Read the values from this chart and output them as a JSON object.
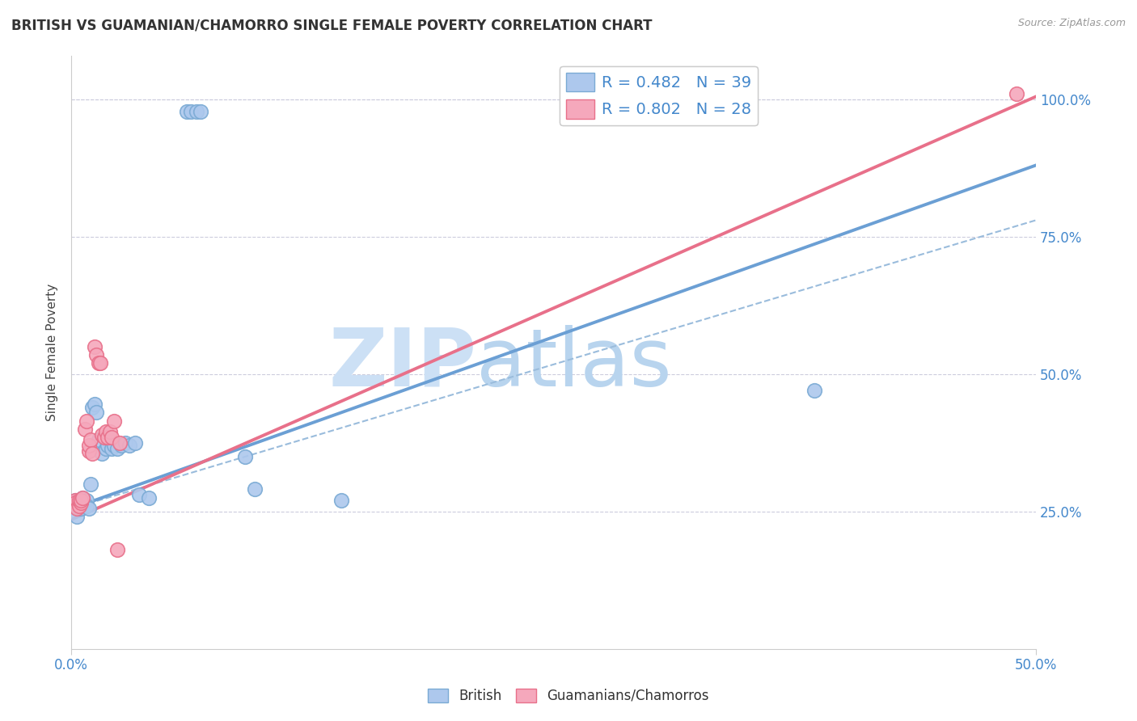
{
  "title": "BRITISH VS GUAMANIAN/CHAMORRO SINGLE FEMALE POVERTY CORRELATION CHART",
  "source": "Source: ZipAtlas.com",
  "ylabel": "Single Female Poverty",
  "legend1_text": "R = 0.482   N = 39",
  "legend2_text": "R = 0.802   N = 28",
  "british_color": "#adc8ed",
  "chamorro_color": "#f5a8bc",
  "british_edge_color": "#7aaad4",
  "chamorro_edge_color": "#e8708a",
  "british_line_color": "#6b9fd4",
  "chamorro_line_color": "#e8708a",
  "dashed_line_color": "#9abcdc",
  "xaxis_range": [
    0.0,
    0.5
  ],
  "yaxis_range": [
    0.0,
    1.08
  ],
  "x_ticks": [
    0.0,
    0.5
  ],
  "x_tick_labels": [
    "0.0%",
    "50.0%"
  ],
  "y_ticks": [
    0.25,
    0.5,
    0.75,
    1.0
  ],
  "y_tick_labels": [
    "25.0%",
    "50.0%",
    "75.0%",
    "100.0%"
  ],
  "british_scatter": [
    [
      0.002,
      0.27
    ],
    [
      0.002,
      0.265
    ],
    [
      0.003,
      0.24
    ],
    [
      0.004,
      0.255
    ],
    [
      0.004,
      0.26
    ],
    [
      0.005,
      0.265
    ],
    [
      0.005,
      0.255
    ],
    [
      0.006,
      0.27
    ],
    [
      0.006,
      0.275
    ],
    [
      0.007,
      0.265
    ],
    [
      0.008,
      0.27
    ],
    [
      0.008,
      0.26
    ],
    [
      0.009,
      0.255
    ],
    [
      0.01,
      0.3
    ],
    [
      0.011,
      0.44
    ],
    [
      0.012,
      0.445
    ],
    [
      0.013,
      0.43
    ],
    [
      0.014,
      0.38
    ],
    [
      0.016,
      0.355
    ],
    [
      0.018,
      0.365
    ],
    [
      0.019,
      0.37
    ],
    [
      0.02,
      0.38
    ],
    [
      0.021,
      0.365
    ],
    [
      0.022,
      0.37
    ],
    [
      0.024,
      0.365
    ],
    [
      0.026,
      0.37
    ],
    [
      0.028,
      0.375
    ],
    [
      0.03,
      0.37
    ],
    [
      0.033,
      0.375
    ],
    [
      0.035,
      0.28
    ],
    [
      0.04,
      0.275
    ],
    [
      0.06,
      0.978
    ],
    [
      0.062,
      0.978
    ],
    [
      0.065,
      0.978
    ],
    [
      0.067,
      0.978
    ],
    [
      0.09,
      0.35
    ],
    [
      0.095,
      0.29
    ],
    [
      0.14,
      0.27
    ],
    [
      0.385,
      0.47
    ]
  ],
  "chamorro_scatter": [
    [
      0.002,
      0.27
    ],
    [
      0.002,
      0.265
    ],
    [
      0.003,
      0.255
    ],
    [
      0.004,
      0.26
    ],
    [
      0.004,
      0.27
    ],
    [
      0.005,
      0.265
    ],
    [
      0.005,
      0.27
    ],
    [
      0.006,
      0.275
    ],
    [
      0.007,
      0.4
    ],
    [
      0.008,
      0.415
    ],
    [
      0.009,
      0.36
    ],
    [
      0.009,
      0.37
    ],
    [
      0.01,
      0.38
    ],
    [
      0.011,
      0.355
    ],
    [
      0.012,
      0.55
    ],
    [
      0.013,
      0.535
    ],
    [
      0.014,
      0.52
    ],
    [
      0.015,
      0.52
    ],
    [
      0.016,
      0.39
    ],
    [
      0.017,
      0.385
    ],
    [
      0.018,
      0.395
    ],
    [
      0.019,
      0.385
    ],
    [
      0.02,
      0.395
    ],
    [
      0.021,
      0.385
    ],
    [
      0.022,
      0.415
    ],
    [
      0.024,
      0.18
    ],
    [
      0.025,
      0.375
    ],
    [
      0.49,
      1.01
    ]
  ],
  "british_line_x": [
    0.0,
    0.5
  ],
  "british_line_y": [
    0.255,
    0.88
  ],
  "chamorro_line_x": [
    0.0,
    0.5
  ],
  "chamorro_line_y": [
    0.235,
    1.005
  ],
  "diag_line_x": [
    0.0,
    0.5
  ],
  "diag_line_y": [
    0.255,
    0.78
  ]
}
